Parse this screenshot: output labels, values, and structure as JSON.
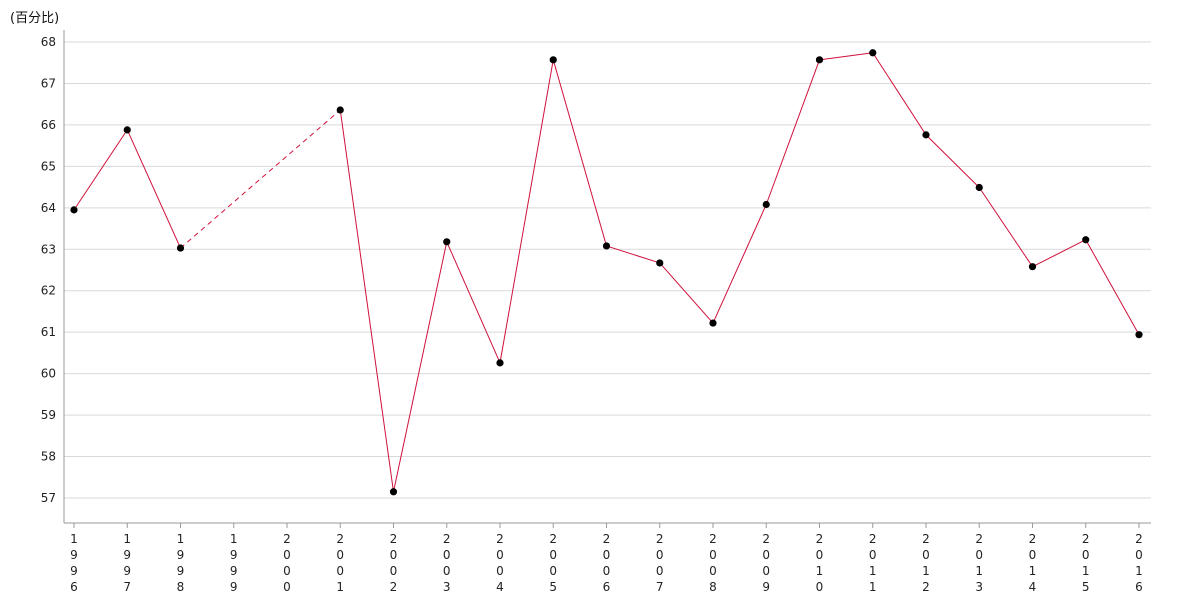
{
  "chart_data": {
    "type": "line",
    "unit_label": "(百分比)",
    "categories": [
      "1996",
      "1997",
      "1998",
      "1999",
      "2000",
      "2001",
      "2002",
      "2003",
      "2004",
      "2005",
      "2006",
      "2007",
      "2008",
      "2009",
      "2010",
      "2011",
      "2012",
      "2013",
      "2014",
      "2015",
      "2016"
    ],
    "series": [
      {
        "values": [
          63.95,
          65.88,
          63.03,
          null,
          null,
          66.36,
          57.15,
          63.18,
          60.26,
          67.57,
          63.08,
          62.67,
          61.22,
          64.08,
          67.57,
          67.74,
          65.76,
          64.49,
          62.58,
          63.23,
          60.94
        ],
        "color": "#d0103a",
        "marker_color": "#000000",
        "gap_style": "dashed"
      }
    ],
    "yticks": [
      57,
      58,
      59,
      60,
      61,
      62,
      63,
      64,
      65,
      66,
      67,
      68
    ],
    "ylim": [
      56.4,
      68.3
    ],
    "grid": "horizontal",
    "gridline_color": "#d9d9d9"
  }
}
